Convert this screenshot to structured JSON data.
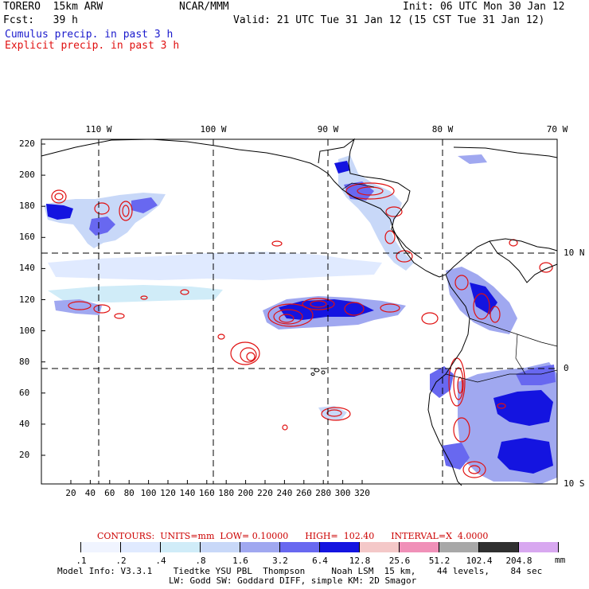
{
  "header": {
    "model": "TORERO  15km ARW",
    "org": "NCAR/MMM",
    "init": "Init: 06 UTC Mon 30 Jan 12",
    "fcst": "Fcst:   39 h",
    "valid": "Valid: 21 UTC Tue 31 Jan 12 (15 CST Tue 31 Jan 12)",
    "legend_cumulus": "Cumulus precip. in past 3 h",
    "legend_explicit": "Explicit precip. in past 3 h",
    "legend_cumulus_color": "#1a1acc",
    "legend_explicit_color": "#e01010"
  },
  "map": {
    "top_lon_labels": [
      "110 W",
      "100 W",
      "90 W",
      "80 W",
      "70 W"
    ],
    "right_lat_labels": [
      "10 N",
      "0",
      "10 S"
    ],
    "y_ticks": [
      "220",
      "200",
      "180",
      "160",
      "140",
      "120",
      "100",
      "80",
      "60",
      "40",
      "20"
    ],
    "x_ticks": [
      "20",
      "40",
      "60",
      "80",
      "100",
      "120",
      "140",
      "160",
      "180",
      "200",
      "220",
      "240",
      "260",
      "280",
      "300",
      "320"
    ]
  },
  "contour_info": {
    "text": "CONTOURS:  UNITS=mm  LOW= 0.10000      HIGH=  102.40      INTERVAL=X  4.0000",
    "color": "#cc0000"
  },
  "color_scale": {
    "labels": [
      ".1",
      ".2",
      ".4",
      ".8",
      "1.6",
      "3.2",
      "6.4",
      "12.8",
      "25.6",
      "51.2",
      "102.4",
      "204.8"
    ],
    "units": "mm",
    "colors": [
      "#ffffff",
      "#f0f4ff",
      "#e0eaff",
      "#d0ecf8",
      "#c8d8f8",
      "#a0a8f0",
      "#6868f0",
      "#1414e0",
      "#f4c8c8",
      "#f090b8",
      "#a8a8a8",
      "#303030",
      "#d8a8f0"
    ]
  },
  "footer": {
    "line1": "Model Info: V3.3.1    Tiedtke YSU PBL  Thompson     Noah LSM  15 km,    44 levels,    84 sec",
    "line2": "LW: Godd SW: Goddard DIFF, simple KM: 2D Smagor"
  }
}
